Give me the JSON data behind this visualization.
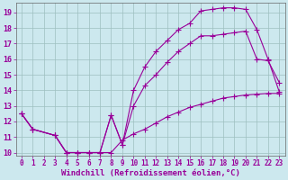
{
  "bg_color": "#cce8ee",
  "line_color": "#990099",
  "marker": "+",
  "marker_size": 4,
  "line_width": 0.8,
  "xlabel": "Windchill (Refroidissement éolien,°C)",
  "xlabel_fontsize": 6.5,
  "tick_fontsize": 5.5,
  "xlim": [
    -0.5,
    23.5
  ],
  "ylim": [
    9.8,
    19.6
  ],
  "yticks": [
    10,
    11,
    12,
    13,
    14,
    15,
    16,
    17,
    18,
    19
  ],
  "xticks": [
    0,
    1,
    2,
    3,
    4,
    5,
    6,
    7,
    8,
    9,
    10,
    11,
    12,
    13,
    14,
    15,
    16,
    17,
    18,
    19,
    20,
    21,
    22,
    23
  ],
  "series1_x": [
    0,
    1,
    3,
    4,
    5,
    6,
    7,
    8,
    9,
    10,
    11,
    12,
    13,
    14,
    15,
    16,
    17,
    18,
    19,
    20,
    21,
    22,
    23
  ],
  "series1_y": [
    12.5,
    11.5,
    11.1,
    10.0,
    10.0,
    10.0,
    10.0,
    10.0,
    10.8,
    11.2,
    11.5,
    11.9,
    12.3,
    12.6,
    12.9,
    13.1,
    13.3,
    13.5,
    13.6,
    13.7,
    13.75,
    13.8,
    13.8
  ],
  "series2_x": [
    0,
    1,
    3,
    4,
    5,
    6,
    7,
    8,
    9,
    10,
    11,
    12,
    13,
    14,
    15,
    16,
    17,
    18,
    19,
    20,
    21,
    22,
    23
  ],
  "series2_y": [
    12.5,
    11.5,
    11.1,
    10.0,
    10.0,
    10.0,
    10.0,
    12.4,
    10.5,
    13.0,
    14.3,
    15.0,
    15.8,
    16.5,
    17.0,
    17.5,
    17.5,
    17.6,
    17.7,
    17.8,
    16.0,
    15.9,
    14.5
  ],
  "series3_x": [
    0,
    1,
    3,
    4,
    5,
    6,
    7,
    8,
    9,
    10,
    11,
    12,
    13,
    14,
    15,
    16,
    17,
    18,
    19,
    20,
    21,
    22,
    23
  ],
  "series3_y": [
    12.5,
    11.5,
    11.1,
    10.0,
    10.0,
    10.0,
    10.0,
    12.4,
    10.5,
    14.0,
    15.5,
    16.5,
    17.2,
    17.9,
    18.3,
    19.1,
    19.2,
    19.3,
    19.3,
    19.2,
    17.9,
    16.0,
    13.9
  ]
}
